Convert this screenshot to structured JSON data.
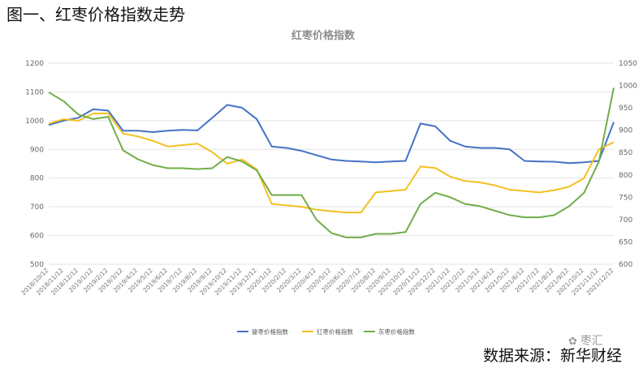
{
  "figure_title": "图一、红枣价格指数走势",
  "source_note": "数据来源：新华财经",
  "watermark": {
    "icon": "wechat-icon",
    "text": "枣汇"
  },
  "chart_data": {
    "type": "line",
    "title": "红枣价格指数",
    "legend_position": "bottom",
    "grid": true,
    "x_labels": [
      "2018/10/12",
      "2018/11/12",
      "2018/12/12",
      "2019/1/12",
      "2019/2/12",
      "2019/3/12",
      "2019/4/12",
      "2019/5/12",
      "2019/6/12",
      "2019/7/12",
      "2019/8/12",
      "2019/9/12",
      "2019/10/12",
      "2019/11/12",
      "2019/12/12",
      "2020/1/12",
      "2020/2/12",
      "2020/3/12",
      "2020/4/12",
      "2020/5/12",
      "2020/6/12",
      "2020/7/12",
      "2020/8/12",
      "2020/9/12",
      "2020/10/12",
      "2020/11/12",
      "2020/12/12",
      "2021/1/12",
      "2021/2/12",
      "2021/3/12",
      "2021/4/12",
      "2021/5/12",
      "2021/6/12",
      "2021/7/12",
      "2021/8/12",
      "2021/9/12",
      "2021/10/12",
      "2021/11/12",
      "2021/12/12"
    ],
    "y_left": {
      "min": 500,
      "max": 1200,
      "ticks": [
        500,
        600,
        700,
        800,
        900,
        1000,
        1100,
        1200
      ]
    },
    "y_right": {
      "min": 600,
      "max": 1050,
      "ticks": [
        600,
        650,
        700,
        750,
        800,
        850,
        900,
        950,
        1000,
        1050
      ]
    },
    "series": [
      {
        "name": "骏枣价格指数",
        "color": "#4472c4",
        "axis": "left",
        "values": [
          985,
          1000,
          1010,
          1040,
          1035,
          965,
          965,
          960,
          965,
          968,
          966,
          1010,
          1055,
          1045,
          1005,
          910,
          905,
          895,
          880,
          865,
          860,
          858,
          855,
          858,
          860,
          990,
          980,
          930,
          910,
          905,
          905,
          900,
          860,
          858,
          857,
          852,
          855,
          860,
          995
        ]
      },
      {
        "name": "红枣价格指数",
        "color": "#f4c020",
        "axis": "left",
        "values": [
          990,
          1005,
          1000,
          1025,
          1025,
          955,
          945,
          930,
          910,
          915,
          920,
          890,
          850,
          865,
          830,
          710,
          705,
          700,
          690,
          685,
          680,
          680,
          750,
          755,
          760,
          840,
          835,
          805,
          790,
          785,
          775,
          760,
          755,
          750,
          758,
          770,
          800,
          900,
          925
        ]
      },
      {
        "name": "灰枣价格指数",
        "color": "#70ad47",
        "axis": "right",
        "values": [
          985,
          965,
          935,
          925,
          930,
          855,
          835,
          822,
          815,
          815,
          813,
          815,
          840,
          830,
          810,
          755,
          755,
          755,
          700,
          670,
          660,
          660,
          668,
          668,
          672,
          735,
          760,
          750,
          735,
          730,
          720,
          710,
          705,
          705,
          710,
          730,
          760,
          830,
          995
        ]
      }
    ]
  }
}
